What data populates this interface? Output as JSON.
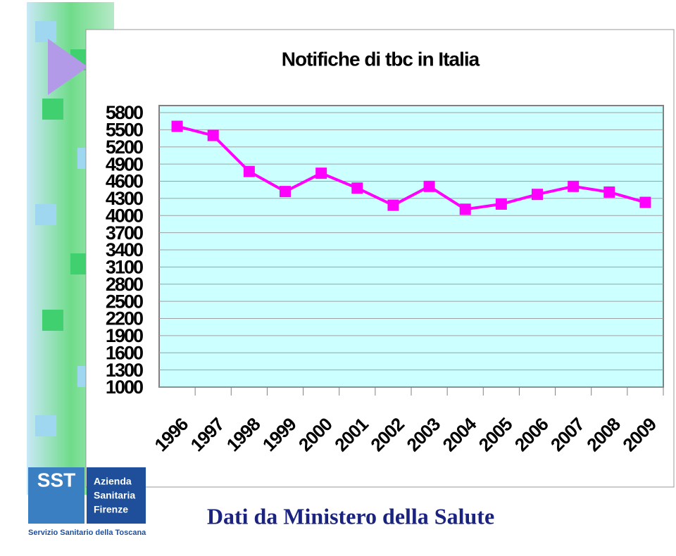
{
  "chart_data": {
    "type": "line",
    "title": "Notifiche di tbc in Italia",
    "categories": [
      "1996",
      "1997",
      "1998",
      "1999",
      "2000",
      "2001",
      "2002",
      "2003",
      "2004",
      "2005",
      "2006",
      "2007",
      "2008",
      "2009"
    ],
    "values": [
      5560,
      5400,
      4770,
      4420,
      4740,
      4480,
      4180,
      4510,
      4110,
      4200,
      4370,
      4510,
      4410,
      4230
    ],
    "color": "#ff00ff",
    "ylim": [
      1000,
      5800
    ],
    "yticks": [
      1000,
      1300,
      1600,
      1900,
      2200,
      2500,
      2800,
      3100,
      3400,
      3700,
      4000,
      4300,
      4600,
      4900,
      5200,
      5500,
      5800
    ],
    "grid": true
  },
  "slide": {
    "footer": "Dati da Ministero della Salute",
    "logo": {
      "abbr": "SST",
      "lines": [
        "Azienda",
        "Sanitaria",
        "Firenze"
      ],
      "caption": "Servizio Sanitario della Toscana"
    }
  }
}
